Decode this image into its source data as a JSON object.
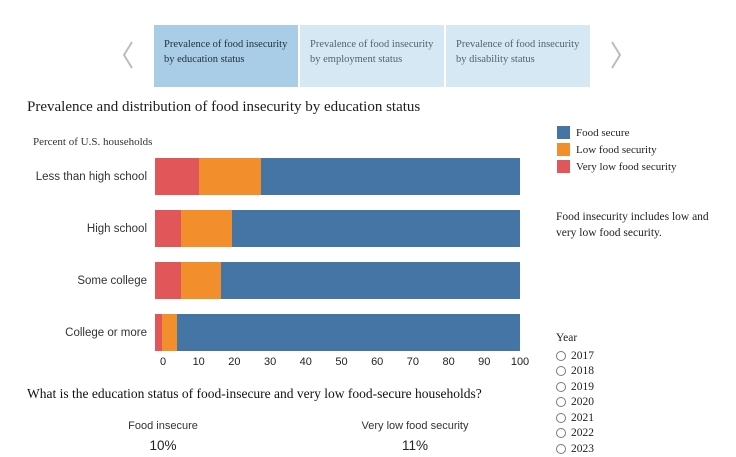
{
  "colors": {
    "tab_selected_bg": "#a9cde6",
    "tab_bg": "#d7e8f5",
    "chevron": "#bcbcbc",
    "food_secure_blue": "#4575a5",
    "low_food_security_orange": "#f28e2b",
    "very_low_food_security_red": "#e15759"
  },
  "carousel": {
    "tabs": [
      {
        "label_line1": "Prevalence of food insecurity",
        "label_line2": "by education status",
        "selected": true
      },
      {
        "label_line1": "Prevalence of food insecurity",
        "label_line2": "by employment status",
        "selected": false
      },
      {
        "label_line1": "Prevalence of food insecurity",
        "label_line2": "by disability status",
        "selected": false
      }
    ]
  },
  "chart": {
    "title": "Prevalence and distribution of food insecurity by education status",
    "subtitle": "Percent of U.S. households",
    "legend": [
      {
        "label": "Food secure",
        "color": "#4575a5"
      },
      {
        "label": "Low food security",
        "color": "#f28e2b"
      },
      {
        "label": "Very low food security",
        "color": "#e15759"
      }
    ],
    "note": "Food insecurity includes low and very low food security."
  },
  "chart_data": {
    "type": "bar",
    "orientation": "horizontal",
    "stacked": true,
    "title": "Prevalence and distribution of food insecurity by education status",
    "xlabel": "Percent of U.S. households",
    "categories": [
      "Less than high school",
      "High school",
      "Some college",
      "College or more"
    ],
    "series": [
      {
        "name": "Very low food security",
        "color": "#e15759",
        "values": [
          12,
          7,
          7,
          2
        ]
      },
      {
        "name": "Low food security",
        "color": "#f28e2b",
        "values": [
          17,
          14,
          11,
          4
        ]
      },
      {
        "name": "Food secure",
        "color": "#4575a5",
        "values": [
          71,
          79,
          82,
          94
        ]
      }
    ],
    "xlim": [
      0,
      100
    ],
    "x_ticks": [
      0,
      10,
      20,
      30,
      40,
      50,
      60,
      70,
      80,
      90,
      100
    ],
    "legend_position": "right",
    "grid": false
  },
  "year_filter": {
    "label": "Year",
    "options": [
      {
        "label": "2017",
        "selected": false
      },
      {
        "label": "2018",
        "selected": false
      },
      {
        "label": "2019",
        "selected": false
      },
      {
        "label": "2020",
        "selected": false
      },
      {
        "label": "2021",
        "selected": false
      },
      {
        "label": "2022",
        "selected": false
      },
      {
        "label": "2023",
        "selected": false
      }
    ]
  },
  "bottom": {
    "question": "What is the education status of food-insecure and very low food-secure households?",
    "groups": [
      {
        "label": "Food insecure",
        "value": "10%"
      },
      {
        "label": "Very low food security",
        "value": "11%"
      }
    ]
  }
}
